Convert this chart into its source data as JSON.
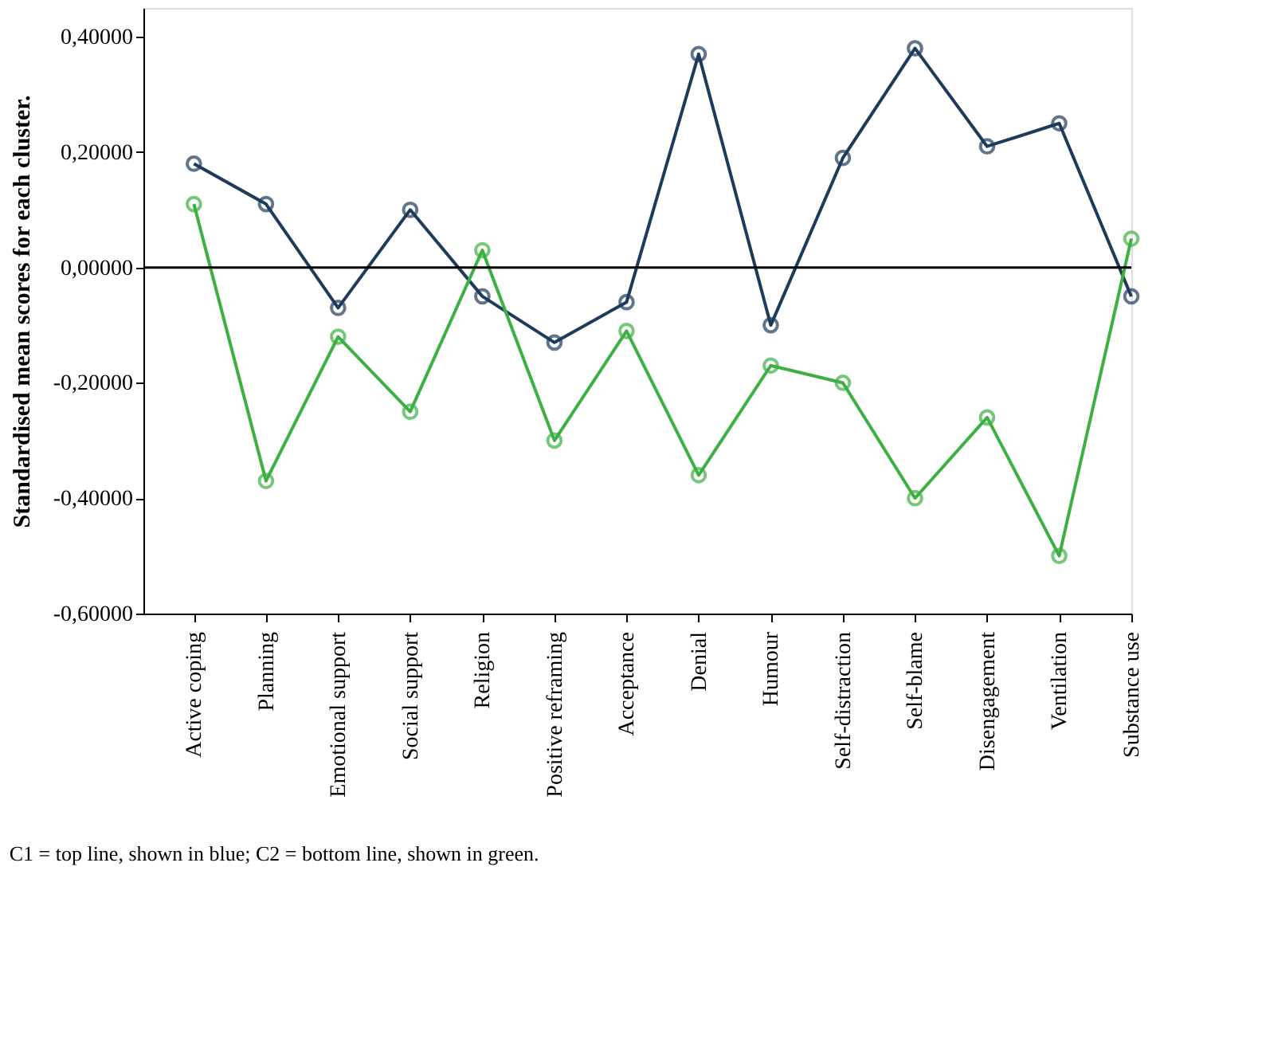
{
  "chart_data": {
    "type": "line",
    "ylabel": "Standardised mean scores for each cluster.",
    "categories": [
      "Active coping",
      "Planning",
      "Emotional support",
      "Social support",
      "Religion",
      "Positive reframing",
      "Acceptance",
      "Denial",
      "Humour",
      "Self-distraction",
      "Self-blame",
      "Disengagement",
      "Ventilation",
      "Substance use"
    ],
    "series": [
      {
        "color": "#1f3b5c",
        "values": [
          0.18,
          0.11,
          -0.07,
          0.1,
          -0.05,
          -0.13,
          -0.06,
          0.37,
          -0.1,
          0.19,
          0.38,
          0.21,
          0.25,
          -0.05
        ]
      },
      {
        "color": "#3cb043",
        "values": [
          0.11,
          -0.37,
          -0.12,
          -0.25,
          0.03,
          -0.3,
          -0.11,
          -0.36,
          -0.17,
          -0.2,
          -0.4,
          -0.26,
          -0.5,
          0.05
        ]
      }
    ],
    "ylim": [
      -0.6,
      0.45
    ],
    "yticks": [
      {
        "value": -0.6,
        "label": "-0,60000"
      },
      {
        "value": -0.4,
        "label": "-0,40000"
      },
      {
        "value": -0.2,
        "label": "-0,20000"
      },
      {
        "value": 0,
        "label": "0,00000"
      },
      {
        "value": 0.2,
        "label": "0,20000"
      },
      {
        "value": 0.4,
        "label": "0,40000"
      }
    ],
    "ref_lines": [
      {
        "axis": "y",
        "value": 0,
        "color": "#000000"
      }
    ],
    "marker": "circle",
    "grid": false,
    "legend": false,
    "annotations": [
      "C1 = top line, shown in blue; C2 = bottom line, shown in green."
    ]
  }
}
